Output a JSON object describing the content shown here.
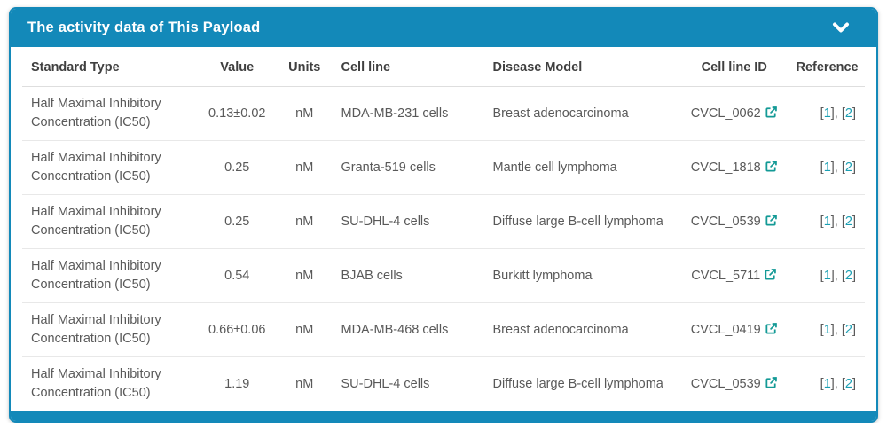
{
  "panel": {
    "title": "The activity data of This Payload",
    "collapse_icon": "chevron-down-icon"
  },
  "table": {
    "columns": [
      {
        "label": "Standard Type"
      },
      {
        "label": "Value"
      },
      {
        "label": "Units"
      },
      {
        "label": "Cell line"
      },
      {
        "label": "Disease Model"
      },
      {
        "label": "Cell line ID"
      },
      {
        "label": "Reference"
      }
    ],
    "rows": [
      {
        "standard_type": "Half Maximal Inhibitory Concentration (IC50)",
        "value": "0.13±0.02",
        "units": "nM",
        "cell_line": "MDA-MB-231 cells",
        "disease_model": "Breast adenocarcinoma",
        "cell_line_id": "CVCL_0062",
        "references": [
          "1",
          "2"
        ]
      },
      {
        "standard_type": "Half Maximal Inhibitory Concentration (IC50)",
        "value": "0.25",
        "units": "nM",
        "cell_line": "Granta-519 cells",
        "disease_model": "Mantle cell lymphoma",
        "cell_line_id": "CVCL_1818",
        "references": [
          "1",
          "2"
        ]
      },
      {
        "standard_type": "Half Maximal Inhibitory Concentration (IC50)",
        "value": "0.25",
        "units": "nM",
        "cell_line": "SU-DHL-4 cells",
        "disease_model": "Diffuse large B-cell lymphoma",
        "cell_line_id": "CVCL_0539",
        "references": [
          "1",
          "2"
        ]
      },
      {
        "standard_type": "Half Maximal Inhibitory Concentration (IC50)",
        "value": "0.54",
        "units": "nM",
        "cell_line": "BJAB cells",
        "disease_model": "Burkitt lymphoma",
        "cell_line_id": "CVCL_5711",
        "references": [
          "1",
          "2"
        ]
      },
      {
        "standard_type": "Half Maximal Inhibitory Concentration (IC50)",
        "value": "0.66±0.06",
        "units": "nM",
        "cell_line": "MDA-MB-468 cells",
        "disease_model": "Breast adenocarcinoma",
        "cell_line_id": "CVCL_0419",
        "references": [
          "1",
          "2"
        ]
      },
      {
        "standard_type": "Half Maximal Inhibitory Concentration (IC50)",
        "value": "1.19",
        "units": "nM",
        "cell_line": "SU-DHL-4 cells",
        "disease_model": "Diffuse large B-cell lymphoma",
        "cell_line_id": "CVCL_0539",
        "references": [
          "1",
          "2"
        ]
      }
    ],
    "external_link_icon": "external-link-icon"
  },
  "colors": {
    "accent": "#1389b9",
    "header_text": "#ffffff",
    "column_header_text": "#404040",
    "body_text": "#595959",
    "row_divider": "#e8e8e8",
    "reference_link": "#1a9fb3",
    "external_link_icon": "#149a96"
  }
}
